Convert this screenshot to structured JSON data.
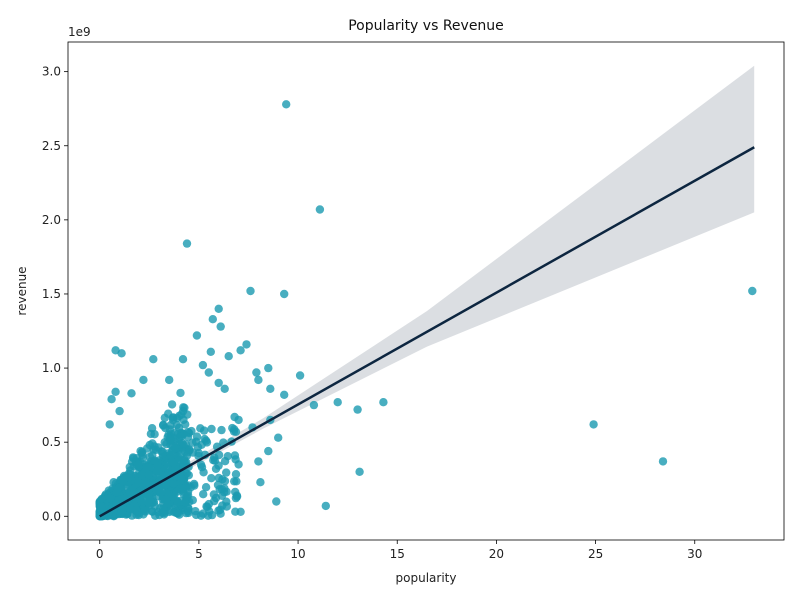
{
  "chart_data": {
    "type": "scatter",
    "title": "Popularity vs Revenue",
    "xlabel": "popularity",
    "ylabel": "revenue",
    "y_offset_label": "1e9",
    "xlim": [
      -1.6,
      34.5
    ],
    "ylim": [
      -0.16,
      3.2
    ],
    "x_ticks": [
      0,
      5,
      10,
      15,
      20,
      25,
      30
    ],
    "x_tick_labels": [
      "0",
      "5",
      "10",
      "15",
      "20",
      "25",
      "30"
    ],
    "y_ticks": [
      0.0,
      0.5,
      1.0,
      1.5,
      2.0,
      2.5,
      3.0
    ],
    "y_tick_labels": [
      "0.0",
      "0.5",
      "1.0",
      "1.5",
      "2.0",
      "2.5",
      "3.0"
    ],
    "y_unit_multiplier": 1000000000,
    "grid": false,
    "legend": "none",
    "colors": {
      "points": "#1a9ab0",
      "regression_line": "#0d2640",
      "confidence_band": "#d5d8dd"
    },
    "regression": {
      "x": [
        0,
        33
      ],
      "y": [
        0.0,
        2.49
      ],
      "ci_upper_at_end": 3.04,
      "ci_lower_at_end": 2.05
    },
    "points_outliers": [
      [
        9.4,
        2.78
      ],
      [
        11.1,
        2.07
      ],
      [
        4.4,
        1.84
      ],
      [
        7.6,
        1.52
      ],
      [
        9.3,
        1.5
      ],
      [
        32.9,
        1.52
      ],
      [
        6.0,
        1.4
      ],
      [
        5.7,
        1.33
      ],
      [
        6.1,
        1.28
      ],
      [
        4.9,
        1.22
      ],
      [
        7.4,
        1.16
      ],
      [
        0.8,
        1.12
      ],
      [
        1.1,
        1.1
      ],
      [
        5.6,
        1.11
      ],
      [
        7.1,
        1.12
      ],
      [
        2.7,
        1.06
      ],
      [
        4.2,
        1.06
      ],
      [
        6.5,
        1.08
      ],
      [
        8.5,
        1.0
      ],
      [
        7.9,
        0.97
      ],
      [
        10.1,
        0.95
      ],
      [
        8.0,
        0.92
      ],
      [
        8.6,
        0.86
      ],
      [
        9.3,
        0.82
      ],
      [
        10.8,
        0.75
      ],
      [
        12.0,
        0.77
      ],
      [
        13.0,
        0.72
      ],
      [
        14.3,
        0.77
      ],
      [
        24.9,
        0.62
      ],
      [
        28.4,
        0.37
      ],
      [
        13.1,
        0.3
      ],
      [
        11.4,
        0.07
      ],
      [
        8.9,
        0.1
      ],
      [
        7.1,
        0.03
      ],
      [
        8.1,
        0.23
      ],
      [
        7.7,
        0.6
      ],
      [
        8.6,
        0.65
      ],
      [
        9.0,
        0.53
      ],
      [
        6.8,
        0.67
      ],
      [
        7.0,
        0.35
      ],
      [
        8.0,
        0.37
      ],
      [
        8.5,
        0.44
      ],
      [
        7.0,
        0.65
      ],
      [
        6.3,
        0.86
      ],
      [
        6.0,
        0.9
      ],
      [
        5.2,
        1.02
      ],
      [
        5.5,
        0.97
      ],
      [
        3.5,
        0.92
      ],
      [
        2.2,
        0.92
      ],
      [
        1.6,
        0.83
      ],
      [
        0.8,
        0.84
      ],
      [
        0.6,
        0.79
      ],
      [
        1.0,
        0.71
      ],
      [
        0.5,
        0.62
      ]
    ]
  }
}
